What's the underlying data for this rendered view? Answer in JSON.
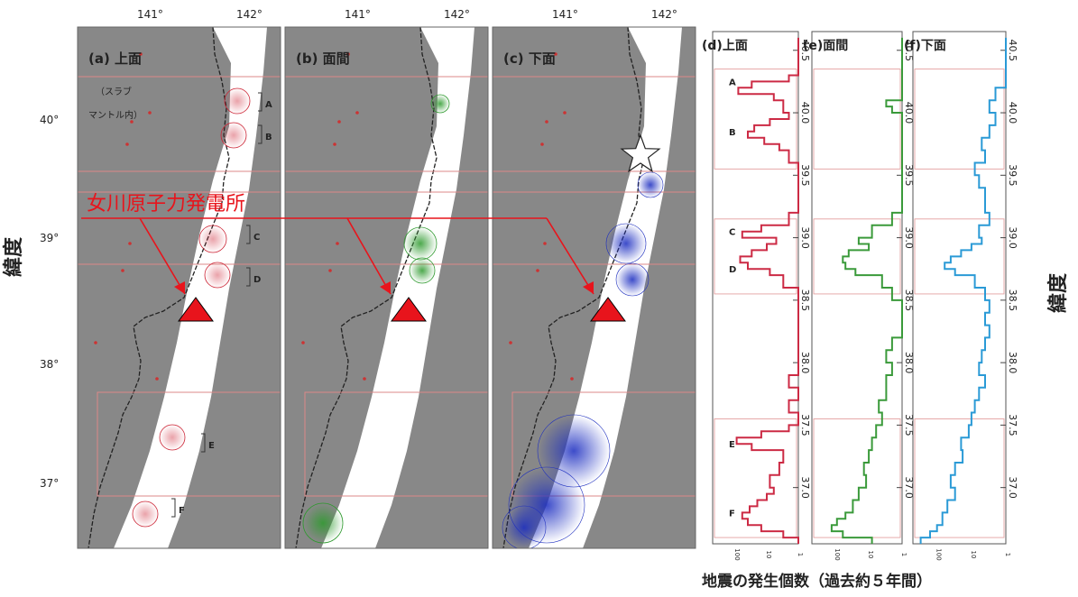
{
  "maps": [
    {
      "tag": "(a)",
      "title": "上面",
      "note1": "（スラブ",
      "note2": "マントル内）",
      "color": "#cc2233"
    },
    {
      "tag": "(b)",
      "title": "面間",
      "color": "#2e9a2e"
    },
    {
      "tag": "(c)",
      "title": "下面",
      "color": "#1e2fbf"
    }
  ],
  "map_lon_ticks": [
    "141°",
    "142°"
  ],
  "map_lat_ticks": [
    "40°",
    "39°",
    "38°",
    "37°"
  ],
  "region_labels": [
    "A",
    "B",
    "C",
    "D",
    "E",
    "F"
  ],
  "annotation": {
    "text": "女川原子力発電所",
    "color": "#e8141c",
    "marker_color": "#e8141c"
  },
  "y_axis_label": "緯度",
  "x_axis_label": "地震の発生個数（過去約５年間）",
  "histograms": {
    "lat_ticks": [
      "40.5",
      "40.0",
      "39.5",
      "39.0",
      "38.5",
      "38.0",
      "37.5",
      "37.0"
    ],
    "lat_range": [
      36.55,
      40.65
    ],
    "panels": [
      {
        "tag": "(d)",
        "title": "上面",
        "color": "#cc2a44",
        "scale": "log"
      },
      {
        "tag": "(e)",
        "title": "面間",
        "color": "#3a9a3a",
        "scale": "log"
      },
      {
        "tag": "(f)",
        "title": "下面",
        "color": "#2a9ad6",
        "scale": "log"
      }
    ]
  },
  "chart_data": [
    {
      "type": "line",
      "title": "(d)上面",
      "xlabel": "地震の発生個数（過去約５年間）",
      "ylabel": "緯度",
      "ylim": [
        36.55,
        40.65
      ],
      "x_scale": "log",
      "series": [
        {
          "name": "上面",
          "lat": [
            40.6,
            40.5,
            40.4,
            40.3,
            40.25,
            40.2,
            40.15,
            40.1,
            40.0,
            39.95,
            39.9,
            39.85,
            39.8,
            39.75,
            39.7,
            39.6,
            39.5,
            39.4,
            39.3,
            39.2,
            39.1,
            39.05,
            39.0,
            38.95,
            38.9,
            38.85,
            38.8,
            38.75,
            38.7,
            38.6,
            38.5,
            38.4,
            38.3,
            38.2,
            38.1,
            38.0,
            37.9,
            37.8,
            37.7,
            37.6,
            37.5,
            37.45,
            37.4,
            37.35,
            37.3,
            37.2,
            37.1,
            37.0,
            36.95,
            36.9,
            36.85,
            36.8,
            36.75,
            36.7,
            36.65,
            36.6
          ],
          "count": [
            1,
            1,
            1,
            2,
            30,
            80,
            6,
            3,
            2,
            8,
            25,
            40,
            12,
            4,
            2,
            1,
            1,
            1,
            1,
            2,
            15,
            60,
            5,
            10,
            30,
            70,
            40,
            8,
            3,
            1,
            1,
            1,
            1,
            1,
            1,
            1,
            2,
            1,
            2,
            1,
            2,
            15,
            90,
            30,
            3,
            4,
            8,
            6,
            10,
            20,
            35,
            60,
            40,
            15,
            3,
            1
          ]
        }
      ]
    },
    {
      "type": "line",
      "title": "(e)面間",
      "xlabel": "地震の発生個数（過去約５年間）",
      "ylabel": "緯度",
      "ylim": [
        36.55,
        40.65
      ],
      "x_scale": "log",
      "series": [
        {
          "name": "面間",
          "lat": [
            40.6,
            40.4,
            40.2,
            40.1,
            40.05,
            40.0,
            39.9,
            39.8,
            39.6,
            39.4,
            39.2,
            39.1,
            39.0,
            38.95,
            38.9,
            38.85,
            38.8,
            38.75,
            38.7,
            38.6,
            38.5,
            38.4,
            38.3,
            38.2,
            38.1,
            38.0,
            37.9,
            37.8,
            37.7,
            37.6,
            37.5,
            37.4,
            37.3,
            37.2,
            37.1,
            37.0,
            36.9,
            36.8,
            36.75,
            36.7,
            36.65,
            36.6
          ],
          "count": [
            1,
            1,
            1,
            3,
            2,
            1,
            1,
            1,
            1,
            1,
            2,
            8,
            20,
            10,
            40,
            60,
            50,
            25,
            4,
            2,
            1,
            1,
            1,
            2,
            3,
            2,
            3,
            3,
            5,
            4,
            6,
            8,
            10,
            14,
            12,
            20,
            30,
            50,
            90,
            130,
            60,
            8
          ]
        }
      ]
    },
    {
      "type": "line",
      "title": "(f) 下面",
      "xlabel": "地震の発生個数（過去約５年間）",
      "ylabel": "緯度",
      "ylim": [
        36.55,
        40.65
      ],
      "x_scale": "log",
      "series": [
        {
          "name": "下面",
          "lat": [
            40.6,
            40.4,
            40.2,
            40.1,
            40.0,
            39.9,
            39.8,
            39.7,
            39.6,
            39.5,
            39.4,
            39.2,
            39.1,
            39.0,
            38.95,
            38.9,
            38.85,
            38.8,
            38.75,
            38.7,
            38.6,
            38.5,
            38.4,
            38.3,
            38.2,
            38.1,
            38.0,
            37.9,
            37.8,
            37.7,
            37.6,
            37.5,
            37.4,
            37.3,
            37.2,
            37.1,
            37.0,
            36.9,
            36.8,
            36.7,
            36.65,
            36.6
          ],
          "count": [
            1,
            1,
            2,
            3,
            2,
            3,
            5,
            4,
            8,
            6,
            4,
            3,
            6,
            5,
            10,
            20,
            40,
            60,
            30,
            8,
            4,
            3,
            4,
            3,
            4,
            5,
            6,
            4,
            6,
            8,
            10,
            12,
            20,
            18,
            30,
            40,
            30,
            50,
            70,
            100,
            160,
            300
          ]
        }
      ]
    }
  ]
}
